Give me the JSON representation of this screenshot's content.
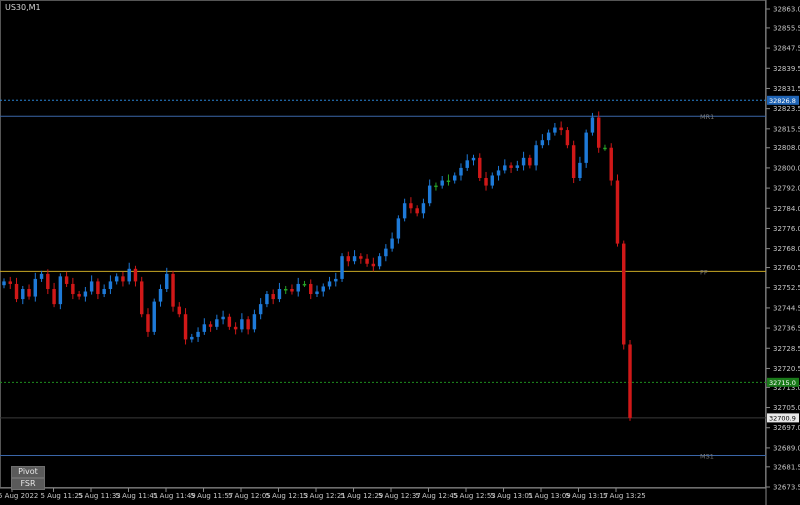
{
  "symbol": "US30,M1",
  "buttons": {
    "pivot": "Pivot",
    "fsr": "FSR"
  },
  "colors": {
    "background": "#000000",
    "bull": "#1e7ad8",
    "bull_small": "#27a327",
    "bear": "#d01818",
    "axis_text": "#c8c8c8",
    "pivot": "#c8a825",
    "resistance": "#3a66a8",
    "support": "#3a66a8",
    "dotted_blue": "#2a86d6",
    "dotted_green": "#1e8e1e",
    "current_line": "#3a3a3a"
  },
  "chart_data": {
    "type": "candlestick",
    "timeframe": "M1",
    "y_ticks": [
      32863.0,
      32855.5,
      32847.5,
      32839.5,
      32831.5,
      32823.5,
      32815.5,
      32808.0,
      32800.0,
      32792.0,
      32784.0,
      32776.0,
      32768.0,
      32760.5,
      32752.5,
      32744.5,
      32736.5,
      32728.5,
      32720.5,
      32713.0,
      32705.0,
      32697.0,
      32689.0,
      32681.5,
      32673.5
    ],
    "x_ticks": [
      "5 Aug 2022",
      "5 Aug 11:25",
      "5 Aug 11:33",
      "5 Aug 11:41",
      "5 Aug 11:49",
      "5 Aug 11:57",
      "5 Aug 12:05",
      "5 Aug 12:13",
      "5 Aug 12:21",
      "5 Aug 12:29",
      "5 Aug 12:37",
      "5 Aug 12:45",
      "5 Aug 12:53",
      "5 Aug 13:01",
      "5 Aug 13:09",
      "5 Aug 13:17",
      "5 Aug 13:25"
    ],
    "levels": [
      {
        "name": "MR1",
        "value": 32820.5,
        "style": "solid"
      },
      {
        "name": "PP",
        "value": 32759.0,
        "style": "solid"
      },
      {
        "name": "MS1",
        "value": 32686.0,
        "style": "solid"
      }
    ],
    "price_tags": [
      {
        "value": 32826.8,
        "label": "32826.8",
        "style": "dotted-blue"
      },
      {
        "value": 32715.0,
        "label": "32715.0",
        "style": "dotted-green"
      },
      {
        "value": 32700.9,
        "label": "32700.9",
        "style": "current"
      }
    ],
    "closes": [
      32755,
      32754,
      32748,
      32752,
      32749,
      32756,
      32758,
      32752,
      32746,
      32757,
      32754,
      32750,
      32749,
      32751,
      32755,
      32750,
      32752,
      32755,
      32757,
      32755,
      32760,
      32755,
      32742,
      32735,
      32747,
      32752,
      32758,
      32745,
      32742,
      32732,
      32733,
      32735,
      32738,
      32737,
      32740,
      32741,
      32737,
      32736,
      32740,
      32736,
      32742,
      32746,
      32750,
      32748,
      32752,
      32752,
      32751,
      32754,
      32754,
      32750,
      32751,
      32753,
      32755,
      32756,
      32765,
      32763,
      32765,
      32764,
      32762,
      32761,
      32765,
      32768,
      32772,
      32780,
      32786,
      32784,
      32782,
      32786,
      32793,
      32793,
      32795,
      32795,
      32797,
      32800,
      32803,
      32804,
      32796,
      32793,
      32797,
      32799,
      32801,
      32800,
      32801,
      32804,
      32801,
      32809,
      32811,
      32814,
      32816,
      32815,
      32809,
      32796,
      32802,
      32814,
      32820,
      32808,
      32808,
      32795,
      32770,
      32730,
      32700.9
    ]
  }
}
